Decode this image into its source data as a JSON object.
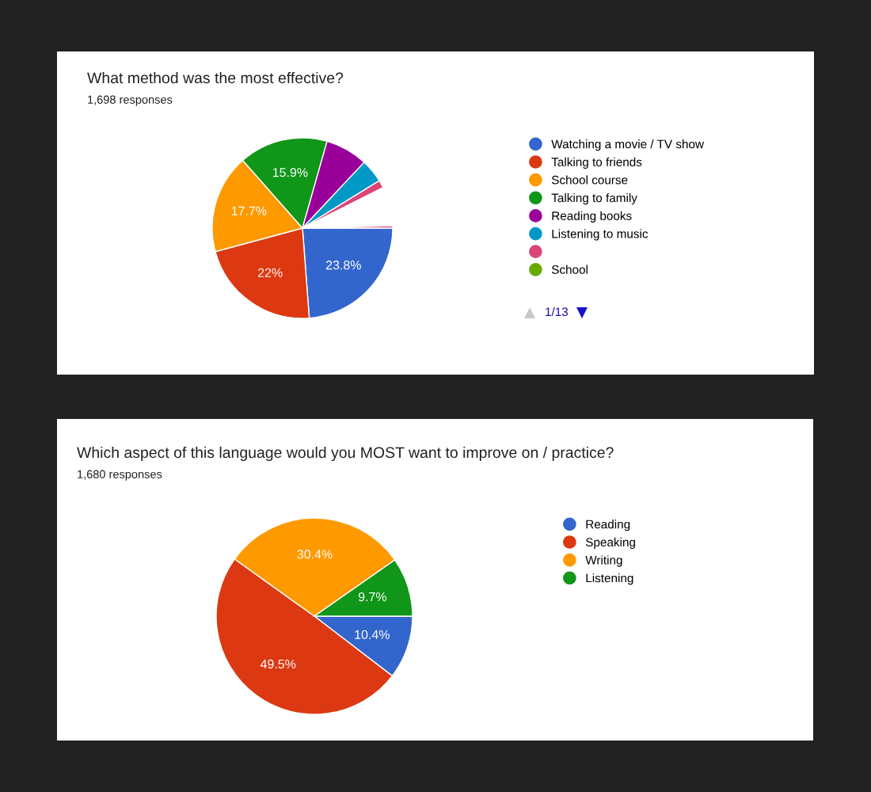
{
  "chart_data": [
    {
      "type": "pie",
      "title": "What method was the most effective?",
      "subtitle": "1,698 responses",
      "categories": [
        "Watching a movie / TV show",
        "Talking to friends",
        "School course",
        "Talking to family",
        "Reading books",
        "Listening to music",
        null,
        "School",
        null,
        null
      ],
      "values": [
        23.8,
        22,
        17.7,
        15.9,
        7.6,
        4.2,
        1.4,
        null,
        7.0,
        0.4
      ],
      "colors": [
        "#3366cc",
        "#dc3912",
        "#ff9900",
        "#109618",
        "#990099",
        "#0099c6",
        "#dd4477",
        "#66aa00",
        "#ffffff",
        "#dd4477"
      ],
      "value_labels": [
        "23.8%",
        "22%",
        "17.7%",
        "15.9%",
        null,
        null,
        null,
        null,
        null,
        null
      ],
      "legend": "right",
      "annotations": [
        "1/13"
      ]
    },
    {
      "type": "pie",
      "title": "Which aspect of this language would you MOST want to improve on / practice?",
      "subtitle": "1,680 responses",
      "categories": [
        "Reading",
        "Speaking",
        "Writing",
        "Listening"
      ],
      "values": [
        10.4,
        49.5,
        30.4,
        9.7
      ],
      "colors": [
        "#3366cc",
        "#dc3912",
        "#ff9900",
        "#109618"
      ],
      "value_labels": [
        "10.4%",
        "49.5%",
        "30.4%",
        "9.7%"
      ],
      "legend": "right"
    }
  ]
}
